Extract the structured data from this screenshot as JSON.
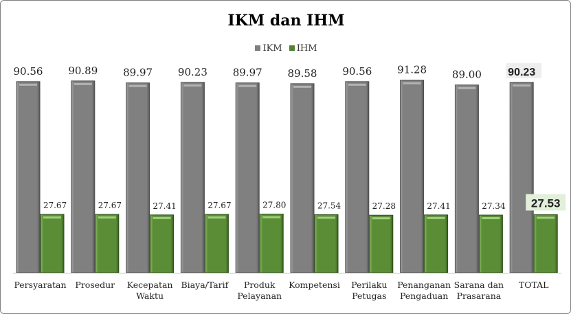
{
  "chart_data": {
    "type": "bar",
    "title": "IKM dan IHM",
    "categories": [
      [
        "Persyaratan"
      ],
      [
        "Prosedur"
      ],
      [
        "Kecepatan",
        "Waktu"
      ],
      [
        "Biaya/Tarif"
      ],
      [
        "Produk",
        "Pelayanan"
      ],
      [
        "Kompetensi"
      ],
      [
        "Perilaku",
        "Petugas"
      ],
      [
        "Penanganan",
        "Pengaduan"
      ],
      [
        "Sarana dan",
        "Prasarana"
      ],
      [
        "TOTAL"
      ]
    ],
    "series": [
      {
        "name": "IKM",
        "color": "#7f7f7f",
        "values": [
          90.56,
          90.89,
          89.97,
          90.23,
          89.97,
          89.58,
          90.56,
          91.28,
          89.0,
          90.23
        ],
        "labels": [
          "90.56",
          "90.89",
          "89.97",
          "90.23",
          "89.97",
          "89.58",
          "90.56",
          "91.28",
          "89.00",
          "90.23"
        ]
      },
      {
        "name": "IHM",
        "color": "#548235",
        "values": [
          27.67,
          27.67,
          27.41,
          27.67,
          27.8,
          27.54,
          27.28,
          27.41,
          27.34,
          27.53
        ],
        "labels": [
          "27.67",
          "27.67",
          "27.41",
          "27.67",
          "27.80",
          "27.54",
          "27.28",
          "27.41",
          "27.34",
          "27.53"
        ]
      }
    ],
    "highlight_category": "TOTAL",
    "highlight_label_colors": {
      "IKM": "#eeeeee",
      "IHM": "#e2efda"
    },
    "xlabel": "",
    "ylabel": "",
    "ylim": [
      0,
      100
    ],
    "grid": false,
    "legend": "top-center"
  }
}
